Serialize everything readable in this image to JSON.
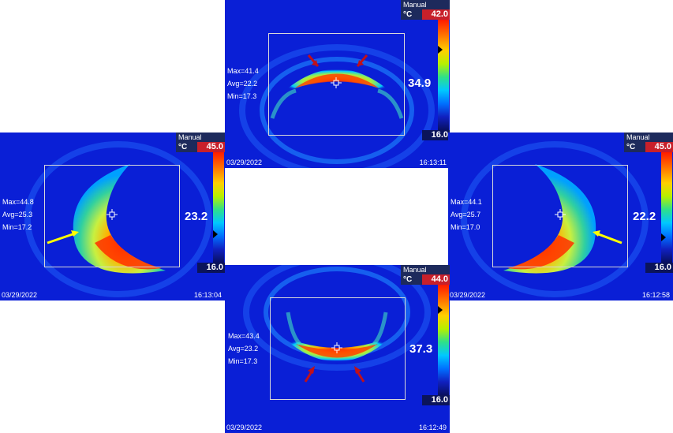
{
  "panels": {
    "top": {
      "mode": "Manual",
      "unit": "°C",
      "scale_max": "42.0",
      "scale_min": "16.0",
      "stat_max": "Max=41.4",
      "stat_avg": "Avg=22.2",
      "stat_min": "Min=17.3",
      "spot": "34.9",
      "date": "03/29/2022",
      "time": "16:13:11"
    },
    "left": {
      "mode": "Manual",
      "unit": "°C",
      "scale_max": "45.0",
      "scale_min": "16.0",
      "stat_max": "Max=44.8",
      "stat_avg": "Avg=25.3",
      "stat_min": "Min=17.2",
      "spot": "23.2",
      "date": "03/29/2022",
      "time": "16:13:04"
    },
    "right": {
      "mode": "Manual",
      "unit": "°C",
      "scale_max": "45.0",
      "scale_min": "16.0",
      "stat_max": "Max=44.1",
      "stat_avg": "Avg=25.7",
      "stat_min": "Min=17.0",
      "spot": "22.2",
      "date": "03/29/2022",
      "time": "16:12:58"
    },
    "bottom": {
      "mode": "Manual",
      "unit": "°C",
      "scale_max": "44.0",
      "scale_min": "16.0",
      "stat_max": "Max=43.4",
      "stat_avg": "Avg=23.2",
      "stat_min": "Min=17.3",
      "spot": "37.3",
      "date": "03/29/2022",
      "time": "16:12:49"
    }
  },
  "colors": {
    "background_blue": "#0a1fd6",
    "hot_red": "#ff2a00",
    "arrow_red": "#c0101a",
    "arrow_yellow": "#ffff00"
  }
}
